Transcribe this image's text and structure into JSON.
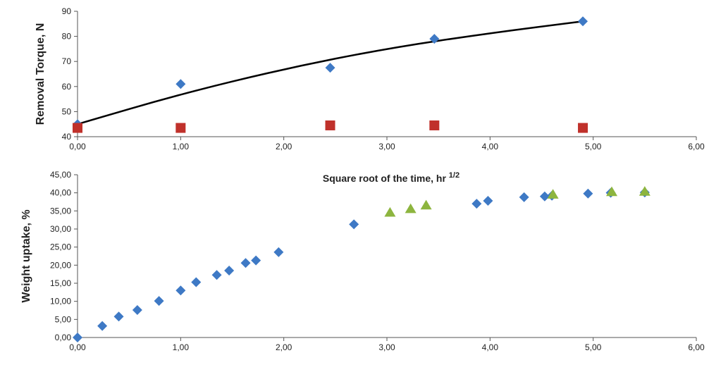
{
  "chart_data": [
    {
      "type": "scatter",
      "title": "",
      "xlabel": "",
      "ylabel": "Removal Torque, N",
      "xlim": [
        0,
        6
      ],
      "ylim": [
        40,
        90
      ],
      "x_ticks": [
        "0,00",
        "1,00",
        "2,00",
        "3,00",
        "4,00",
        "5,00",
        "6,00"
      ],
      "y_ticks": [
        "40",
        "50",
        "60",
        "70",
        "80",
        "90"
      ],
      "grid": false,
      "legend": "none",
      "series": [
        {
          "marker": "diamond",
          "color": "#3e79c5",
          "points": [
            [
              0.0,
              45.0
            ],
            [
              1.0,
              61.0
            ],
            [
              2.45,
              67.5
            ],
            [
              3.46,
              79.0
            ],
            [
              4.9,
              86.0
            ]
          ]
        },
        {
          "marker": "square",
          "color": "#c0312b",
          "points": [
            [
              0.0,
              43.5
            ],
            [
              1.0,
              43.5
            ],
            [
              2.45,
              44.5
            ],
            [
              3.46,
              44.5
            ],
            [
              4.9,
              43.5
            ]
          ]
        }
      ],
      "trendline": {
        "type": "polynomial",
        "color": "#000000",
        "points": [
          [
            0.0,
            45.0
          ],
          [
            1.0,
            57.0
          ],
          [
            2.0,
            67.0
          ],
          [
            3.0,
            75.2
          ],
          [
            4.0,
            81.3
          ],
          [
            4.9,
            86.0
          ]
        ]
      }
    },
    {
      "type": "scatter",
      "title": "",
      "xlabel_parts": [
        "Square root of the time, hr ",
        "1/2"
      ],
      "ylabel": "Weight uptake, %",
      "xlim": [
        0,
        6
      ],
      "ylim": [
        0,
        45
      ],
      "x_ticks": [
        "0,00",
        "1,00",
        "2,00",
        "3,00",
        "4,00",
        "5,00",
        "6,00"
      ],
      "y_ticks": [
        "0,00",
        "5,00",
        "10,00",
        "15,00",
        "20,00",
        "25,00",
        "30,00",
        "35,00",
        "40,00",
        "45,00"
      ],
      "grid": false,
      "legend": "none",
      "series": [
        {
          "marker": "diamond",
          "color": "#3e79c5",
          "points": [
            [
              0.0,
              0.0
            ],
            [
              0.24,
              3.2
            ],
            [
              0.4,
              5.8
            ],
            [
              0.58,
              7.6
            ],
            [
              0.79,
              10.1
            ],
            [
              1.0,
              13.0
            ],
            [
              1.15,
              15.3
            ],
            [
              1.35,
              17.3
            ],
            [
              1.47,
              18.5
            ],
            [
              1.63,
              20.6
            ],
            [
              1.73,
              21.3
            ],
            [
              1.95,
              23.6
            ],
            [
              2.68,
              31.3
            ],
            [
              3.87,
              37.0
            ],
            [
              3.98,
              37.8
            ],
            [
              4.33,
              38.8
            ],
            [
              4.53,
              39.0
            ],
            [
              4.6,
              39.2
            ],
            [
              4.95,
              39.8
            ],
            [
              5.17,
              40.0
            ],
            [
              5.5,
              40.1
            ]
          ]
        },
        {
          "marker": "triangle",
          "color": "#8db53f",
          "points": [
            [
              3.03,
              34.5
            ],
            [
              3.23,
              35.5
            ],
            [
              3.38,
              36.5
            ],
            [
              4.61,
              39.5
            ],
            [
              5.18,
              40.2
            ],
            [
              5.5,
              40.3
            ]
          ]
        }
      ]
    }
  ]
}
